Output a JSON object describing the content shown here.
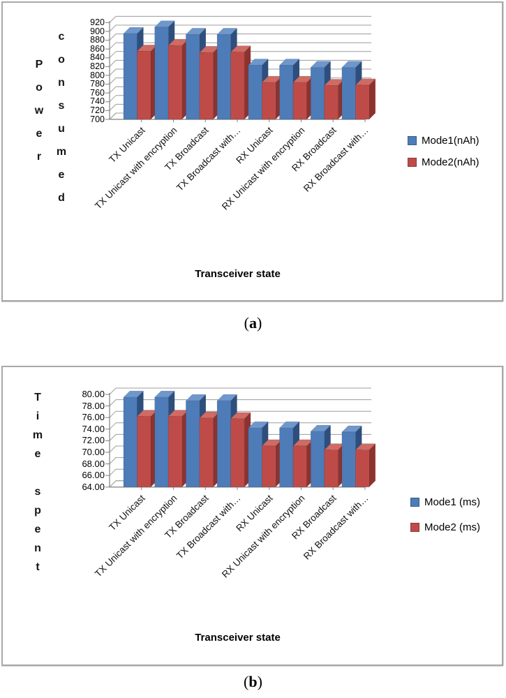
{
  "page": {
    "background": "#ffffff"
  },
  "captions": {
    "a": {
      "open": "(",
      "letter": "a",
      "close": ")"
    },
    "b": {
      "open": "(",
      "letter": "b",
      "close": ")"
    }
  },
  "colors": {
    "grid": "#9c9c9c",
    "axis": "#7f7f7f",
    "box_border": "#a8a8a8",
    "mode1_blue": "#4D7CB8",
    "mode2_red": "#BF4B48"
  },
  "chart_data": [
    {
      "id": "a",
      "type": "bar",
      "title": "",
      "ylabel": "Power consumed",
      "ylabel_columns": [
        "Power",
        "consumed"
      ],
      "xlabel": "Transceiver state",
      "legend_position": "right",
      "grid": true,
      "style": "3d-clustered-column",
      "categories": [
        "TX Unicast",
        "TX Unicast with encryption",
        "TX Broadcast",
        "TX Broadcast with…",
        "RX Unicast",
        "RX Unicast with encryption",
        "RX Broadcast",
        "RX Broadcast with…"
      ],
      "ylim": [
        700,
        920
      ],
      "ytick_step": 20,
      "yticks": [
        "920",
        "900",
        "880",
        "860",
        "840",
        "820",
        "800",
        "780",
        "760",
        "740",
        "720",
        "700"
      ],
      "series": [
        {
          "name": "Mode1(nAh)",
          "color": "#4D7CB8",
          "color_side": "#2E4F7D",
          "color_top": "#6E97CB",
          "values": [
            895,
            910,
            893,
            893,
            823,
            823,
            818,
            818
          ]
        },
        {
          "name": "Mode2(nAh)",
          "color": "#BF4B48",
          "color_side": "#8C3330",
          "color_top": "#CE6B64",
          "values": [
            855,
            868,
            852,
            853,
            784,
            784,
            777,
            778
          ]
        }
      ]
    },
    {
      "id": "b",
      "type": "bar",
      "title": "",
      "ylabel": "Time spent",
      "ylabel_columns": [
        "Time spent"
      ],
      "xlabel": "Transceiver state",
      "legend_position": "right",
      "grid": true,
      "style": "3d-clustered-column",
      "categories": [
        "TX Unicast",
        "TX Unicast with encryption",
        "TX Broadcast",
        "TX Broadcast with…",
        "RX Unicast",
        "RX Unicast with encryption",
        "RX Broadcast",
        "RX Broadcast with…"
      ],
      "ylim": [
        64,
        80
      ],
      "ytick_step": 2,
      "yticks": [
        "80.00",
        "78.00",
        "76.00",
        "74.00",
        "72.00",
        "70.00",
        "68.00",
        "66.00",
        "64.00"
      ],
      "series": [
        {
          "name": "Mode1 (ms)",
          "color": "#4D7CB8",
          "color_side": "#2E4F7D",
          "color_top": "#6E97CB",
          "values": [
            79.5,
            79.5,
            78.9,
            78.9,
            74.2,
            74.2,
            73.6,
            73.5
          ]
        },
        {
          "name": "Mode2 (ms)",
          "color": "#BF4B48",
          "color_side": "#8C3330",
          "color_top": "#CE6B64",
          "values": [
            76.2,
            76.2,
            75.9,
            75.8,
            71.1,
            71.1,
            70.4,
            70.4
          ]
        }
      ]
    }
  ]
}
